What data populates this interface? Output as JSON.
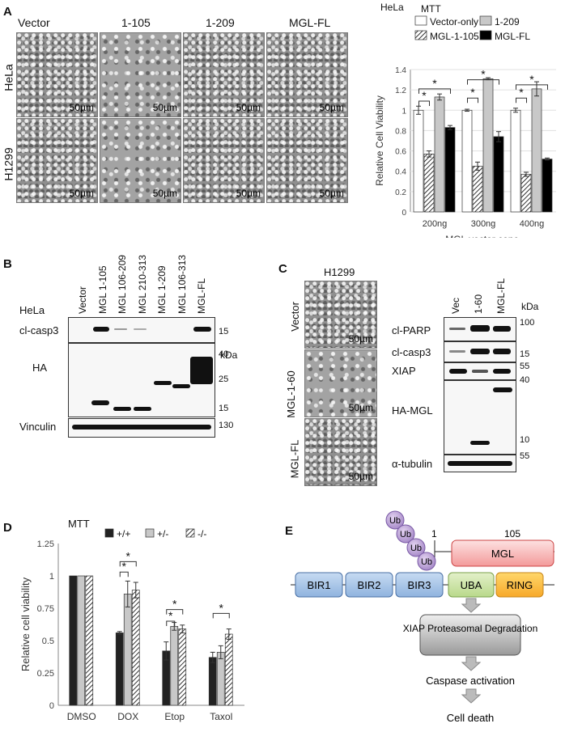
{
  "panelA": {
    "label": "A",
    "columns": [
      "Vector",
      "1-105",
      "1-209",
      "MGL-FL"
    ],
    "rows": [
      "HeLa",
      "H1299"
    ],
    "scale": "50µm",
    "chart_header": "HeLa",
    "chart_title": "MTT"
  },
  "panelB": {
    "label": "B",
    "cell_line": "HeLa",
    "lanes": [
      "Vector",
      "MGL 1-105",
      "MGL 106-209",
      "MGL 210-313",
      "MGL 1-209",
      "MGL 106-313",
      "MGL-FL"
    ],
    "kda_label": "kDa",
    "rows": [
      {
        "label": "cl-casp3",
        "markers": [
          "15"
        ]
      },
      {
        "label": "HA",
        "markers": [
          "40",
          "25",
          "15"
        ]
      },
      {
        "label": "Vinculin",
        "markers": [
          "130"
        ]
      }
    ]
  },
  "panelC": {
    "label": "C",
    "cell_line": "H1299",
    "images": [
      "Vector",
      "MGL-1-60",
      "MGL-FL"
    ],
    "scale": "50µm",
    "lanes": [
      "Vec",
      "1-60",
      "MGL-FL"
    ],
    "kda_label": "kDa",
    "rows": [
      {
        "label": "cl-PARP",
        "markers": [
          "100"
        ]
      },
      {
        "label": "cl-casp3",
        "markers": [
          "15"
        ]
      },
      {
        "label": "XIAP",
        "markers": [
          "55"
        ]
      },
      {
        "label": "HA-MGL",
        "markers": [
          "40",
          "10"
        ]
      },
      {
        "label": "α-tubulin",
        "markers": [
          "55"
        ]
      }
    ]
  },
  "panelD": {
    "label": "D",
    "title": "MTT"
  },
  "panelE": {
    "label": "E",
    "domains": [
      "BIR1",
      "BIR2",
      "BIR3",
      "UBA",
      "RING"
    ],
    "mgl": "MGL",
    "pos_start": "1",
    "pos_end": "105",
    "ub": "Ub",
    "flow": [
      "XIAP Proteasomal Degradation",
      "Caspase activation",
      "Cell death"
    ]
  },
  "chart_data": [
    {
      "type": "bar",
      "panel": "A",
      "categories": [
        "200ng",
        "300ng",
        "400ng"
      ],
      "xlabel": "MGL vector conc.",
      "ylabel": "Relative Cell Viability",
      "ylim": [
        0,
        1.4
      ],
      "yticks": [
        "0",
        "0.2",
        "0.4",
        "0.6",
        "0.8",
        "1",
        "1.2",
        "1.4"
      ],
      "legend_position": "top",
      "series": [
        {
          "name": "Vector-only",
          "values": [
            1.0,
            1.0,
            1.0
          ],
          "color": "#ffffff",
          "pattern": "none"
        },
        {
          "name": "MGL-1-105",
          "values": [
            0.57,
            0.45,
            0.37
          ],
          "color": "#ffffff",
          "pattern": "hatch"
        },
        {
          "name": "1-209",
          "values": [
            1.13,
            1.31,
            1.21
          ],
          "color": "#c8c8c8",
          "pattern": "none"
        },
        {
          "name": "MGL-FL",
          "values": [
            0.83,
            0.74,
            0.52
          ],
          "color": "#000000",
          "pattern": "none"
        }
      ],
      "errors": [
        [
          0.04,
          0.01,
          0.02
        ],
        [
          0.03,
          0.04,
          0.02
        ],
        [
          0.03,
          0.01,
          0.07
        ],
        [
          0.02,
          0.05,
          0.01
        ]
      ],
      "significance": "*"
    },
    {
      "type": "bar",
      "panel": "D",
      "categories": [
        "DMSO",
        "DOX",
        "Etop",
        "Taxol"
      ],
      "xlabel": "",
      "ylabel": "Relative cell viability",
      "ylim": [
        0,
        1.25
      ],
      "yticks": [
        "0",
        "0.25",
        "0.5",
        "0.75",
        "1",
        "1.25"
      ],
      "legend_position": "top",
      "series": [
        {
          "name": "+/+",
          "values": [
            1.0,
            0.56,
            0.42,
            0.37
          ],
          "color": "#222222",
          "pattern": "none"
        },
        {
          "name": "+/-",
          "values": [
            1.0,
            0.86,
            0.61,
            0.41
          ],
          "color": "#c8c8c8",
          "pattern": "none"
        },
        {
          "name": "-/-",
          "values": [
            1.0,
            0.89,
            0.59,
            0.55
          ],
          "color": "#ffffff",
          "pattern": "hatch"
        }
      ],
      "errors": [
        [
          0.0,
          0.01,
          0.07,
          0.04
        ],
        [
          0.0,
          0.1,
          0.03,
          0.05
        ],
        [
          0.0,
          0.06,
          0.03,
          0.04
        ]
      ],
      "significance": "*"
    }
  ]
}
